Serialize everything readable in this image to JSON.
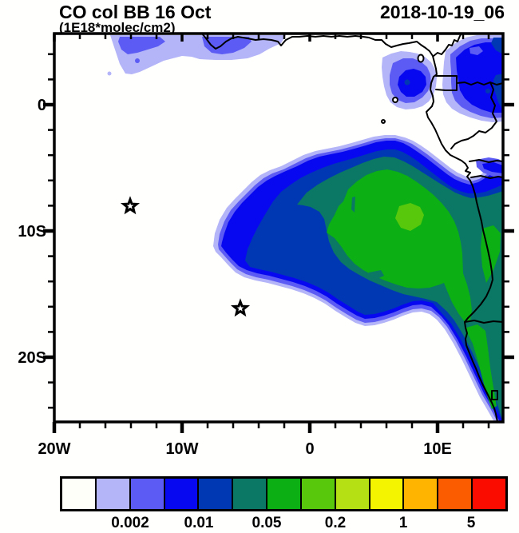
{
  "header": {
    "title": "CO col BB 16 Oct",
    "subtitle": "(1E18*molec/cm2)",
    "datetime": "2018-10-19_06"
  },
  "chart_data": {
    "type": "heatmap",
    "title": "CO col BB 16 Oct",
    "units": "1E18*molec/cm2",
    "valid_datetime": "2018-10-19_06",
    "description": "Filled-contour lat/lon map of biomass-burning CO column over the tropical South Atlantic and western/southern Africa, with coastlines and country borders",
    "x_axis": {
      "ticks": [
        "20W",
        "10W",
        "0",
        "10E"
      ],
      "range_deg_lon": [
        -20,
        15
      ],
      "minor_tick_step_deg": 2
    },
    "y_axis": {
      "ticks": [
        "0",
        "10S",
        "20S"
      ],
      "range_deg_lat": [
        5.6,
        -25
      ],
      "minor_tick_step_deg": 2
    },
    "colorbar": {
      "n_cells": 13,
      "labels": [
        "0.002",
        "0.01",
        "0.05",
        "0.2",
        "1",
        "5"
      ],
      "labeled_boundary_indices": [
        2,
        4,
        6,
        8,
        10,
        12
      ],
      "colors": [
        "#FFFFFA",
        "#B4B4F8",
        "#5C5CF4",
        "#0808F0",
        "#0038B4",
        "#0A7864",
        "#0CB014",
        "#58C80C",
        "#B4E014",
        "#F4F400",
        "#FFB400",
        "#FC5C00",
        "#FA0C00"
      ]
    },
    "markers": [
      {
        "shape": "open-star",
        "lon_deg": -14,
        "lat_deg": -8
      },
      {
        "shape": "open-star",
        "lon_deg": -5.5,
        "lat_deg": -16
      }
    ],
    "features": [
      {
        "name": "main-plume",
        "desc": "Large CO plume off the Angola/Congo coast spreading west over the Atlantic; core 0.05-0.2 with a local maximum 0.2-0.5 near 7E, 9S; tongue extends southeast along the Namibian coast"
      },
      {
        "name": "gulf-of-guinea-plume",
        "desc": "Secondary maximum 0.01-0.05 around the Cameroon/Gabon coast and inland Congo basin near the equator"
      },
      {
        "name": "northern-streak",
        "desc": "Weak band 0.002-0.01 along ~5N between about 15W and 2W"
      }
    ]
  }
}
